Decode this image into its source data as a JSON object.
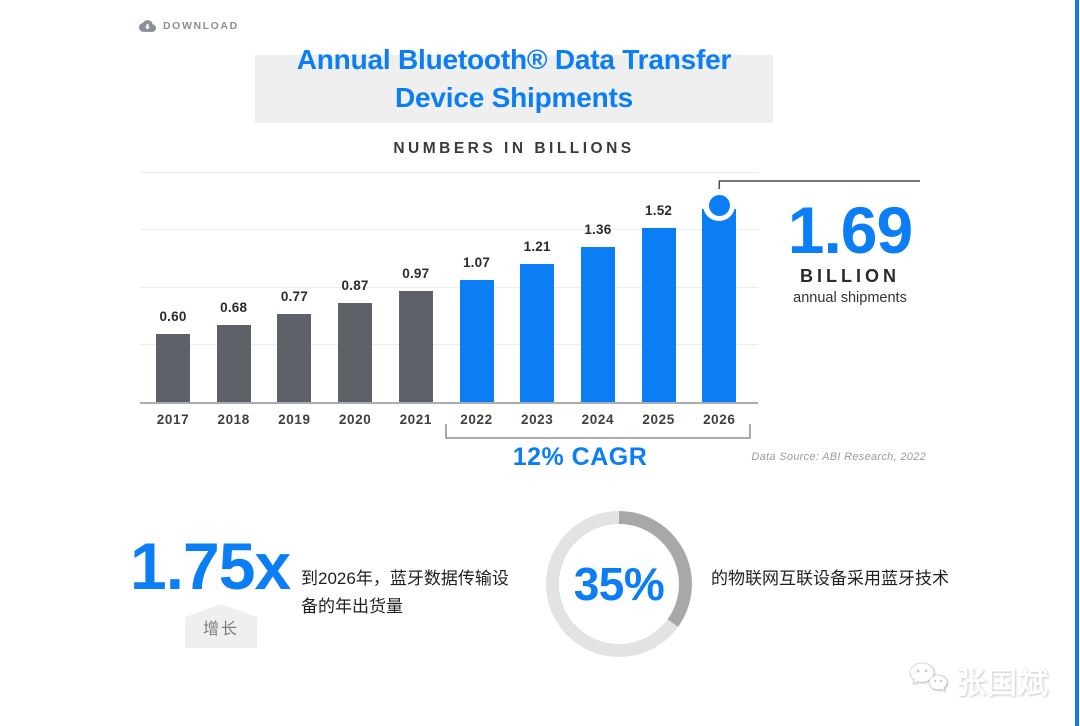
{
  "colors": {
    "accent": "#0b7ef5",
    "bar_gray": "#5e6167",
    "donut_filled": "#a8a8a8",
    "donut_track": "#e3e3e3"
  },
  "toolbar": {
    "download_label": "DOWNLOAD"
  },
  "header": {
    "title_line1": "Annual Bluetooth® Data Transfer",
    "title_line2": "Device Shipments",
    "subtitle": "NUMBERS IN BILLIONS"
  },
  "chart_data": {
    "type": "bar",
    "title": "Annual Bluetooth® Data Transfer Device Shipments",
    "subtitle": "NUMBERS IN BILLIONS",
    "categories": [
      "2017",
      "2018",
      "2019",
      "2020",
      "2021",
      "2022",
      "2023",
      "2024",
      "2025",
      "2026"
    ],
    "values": [
      0.6,
      0.68,
      0.77,
      0.87,
      0.97,
      1.07,
      1.21,
      1.36,
      1.52,
      1.69
    ],
    "bar_labels": [
      "0.60",
      "0.68",
      "0.77",
      "0.87",
      "0.97",
      "1.07",
      "1.21",
      "1.36",
      "1.52",
      ""
    ],
    "highlight_start_index": 5,
    "ylim": [
      0,
      2.0
    ],
    "gridlines": [
      0.5,
      1.0,
      1.5,
      2.0
    ],
    "grid": "faint horizontal lines, no y-axis tick labels",
    "legend": "none; gray bars = 2017-2021 actuals, blue bars = 2022-2026 forecast",
    "callout": {
      "value": "1.69",
      "unit": "BILLION",
      "caption": "annual shipments"
    },
    "cagr": {
      "label": "12% CAGR",
      "from": "2022",
      "to": "2026"
    },
    "source": "Data Source: ABI Research, 2022"
  },
  "stats": {
    "growth": {
      "value": "1.75x",
      "badge": "增长",
      "description": "到2026年，蓝牙数据传输设备的年出货量"
    },
    "iot_share": {
      "type": "donut",
      "percent": 35,
      "value_label": "35%",
      "description": "的物联网互联设备采用蓝牙技术"
    }
  },
  "watermark": {
    "name": "张国斌",
    "icon": "wechat-icon"
  }
}
